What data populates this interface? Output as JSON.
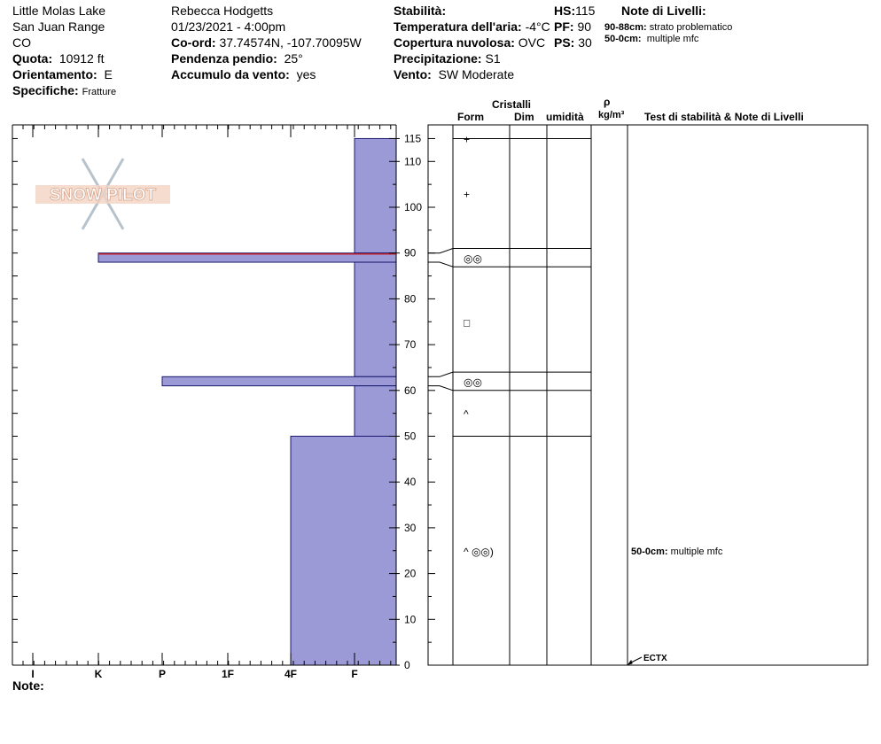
{
  "site": {
    "location": "Little Molas Lake",
    "range": "San Juan Range",
    "state": "CO",
    "elevation_label": "Quota:",
    "elevation": "10912 ft",
    "aspect_label": "Orientamento:",
    "aspect": "E",
    "specifics_label": "Specifiche:",
    "specifics": "Fratture"
  },
  "observer": {
    "name": "Rebecca Hodgetts",
    "datetime": "01/23/2021 - 4:00pm",
    "coord_label": "Co-ord:",
    "coord": "37.74574N, -107.70095W",
    "slope_label": "Pendenza pendio:",
    "slope": "25°",
    "wind_loading_label": "Accumulo da vento:",
    "wind_loading": "yes"
  },
  "conditions": {
    "stability_label": "Stabilità:",
    "stability": "",
    "air_temp_label": "Temperatura dell'aria:",
    "air_temp": "-4°C",
    "cloud_label": "Copertura nuvolosa:",
    "cloud": "OVC",
    "precip_label": "Precipitazione:",
    "precip": "S1",
    "wind_label": "Vento:",
    "wind": "SW Moderate",
    "hs_label": "HS:",
    "hs": "115",
    "pf_label": "PF:",
    "pf": "90",
    "ps_label": "PS:",
    "ps": "30"
  },
  "layer_notes": {
    "title": "Note di Livelli:",
    "items": [
      {
        "range": "90-88cm:",
        "text": "strato problematico"
      },
      {
        "range": "50-0cm:",
        "text": "multiple mfc"
      }
    ]
  },
  "table_headers": {
    "crystals": "Cristalli",
    "form": "Form",
    "size": "Dim",
    "moisture": "umidità",
    "density_symbol": "ρ",
    "density_unit": "kg/m³",
    "stability_tests": "Test di stabilità & Note di Livelli"
  },
  "watermark": "SNOW PILOT",
  "note_label": "Note:",
  "chart_data": {
    "type": "bar",
    "title": "",
    "xlabel": "",
    "ylabel": "",
    "ylim": [
      0,
      120
    ],
    "y_ticks": [
      0,
      10,
      20,
      30,
      40,
      50,
      60,
      70,
      80,
      90,
      100,
      110,
      115
    ],
    "hardness_scale": [
      "I",
      "K",
      "P",
      "1F",
      "4F",
      "F"
    ],
    "layers": [
      {
        "top": 115,
        "bottom": 90,
        "hardness": "F"
      },
      {
        "top": 90,
        "bottom": 88,
        "hardness": "K",
        "problem_layer": true
      },
      {
        "top": 88,
        "bottom": 63,
        "hardness": "F"
      },
      {
        "top": 63,
        "bottom": 61,
        "hardness": "P"
      },
      {
        "top": 61,
        "bottom": 50,
        "hardness": "F"
      },
      {
        "top": 50,
        "bottom": 0,
        "hardness": "4F"
      }
    ],
    "layer_boundaries": [
      115,
      91,
      87,
      64,
      60,
      50
    ],
    "crystal_forms": [
      {
        "depth": 115,
        "symbol": "+"
      },
      {
        "depth": 103,
        "symbol": "+"
      },
      {
        "depth": 89,
        "symbol": "◎◎"
      },
      {
        "depth": 75,
        "symbol": "□"
      },
      {
        "depth": 62,
        "symbol": "◎◎"
      },
      {
        "depth": 55,
        "symbol": "^"
      },
      {
        "depth": 25,
        "symbol": "^ ◎◎)"
      }
    ],
    "test_notes": [
      {
        "depth": 25,
        "range": "50-0cm:",
        "text": "multiple mfc"
      }
    ],
    "stability_test": {
      "depth": 0,
      "label": "ECTX"
    }
  }
}
